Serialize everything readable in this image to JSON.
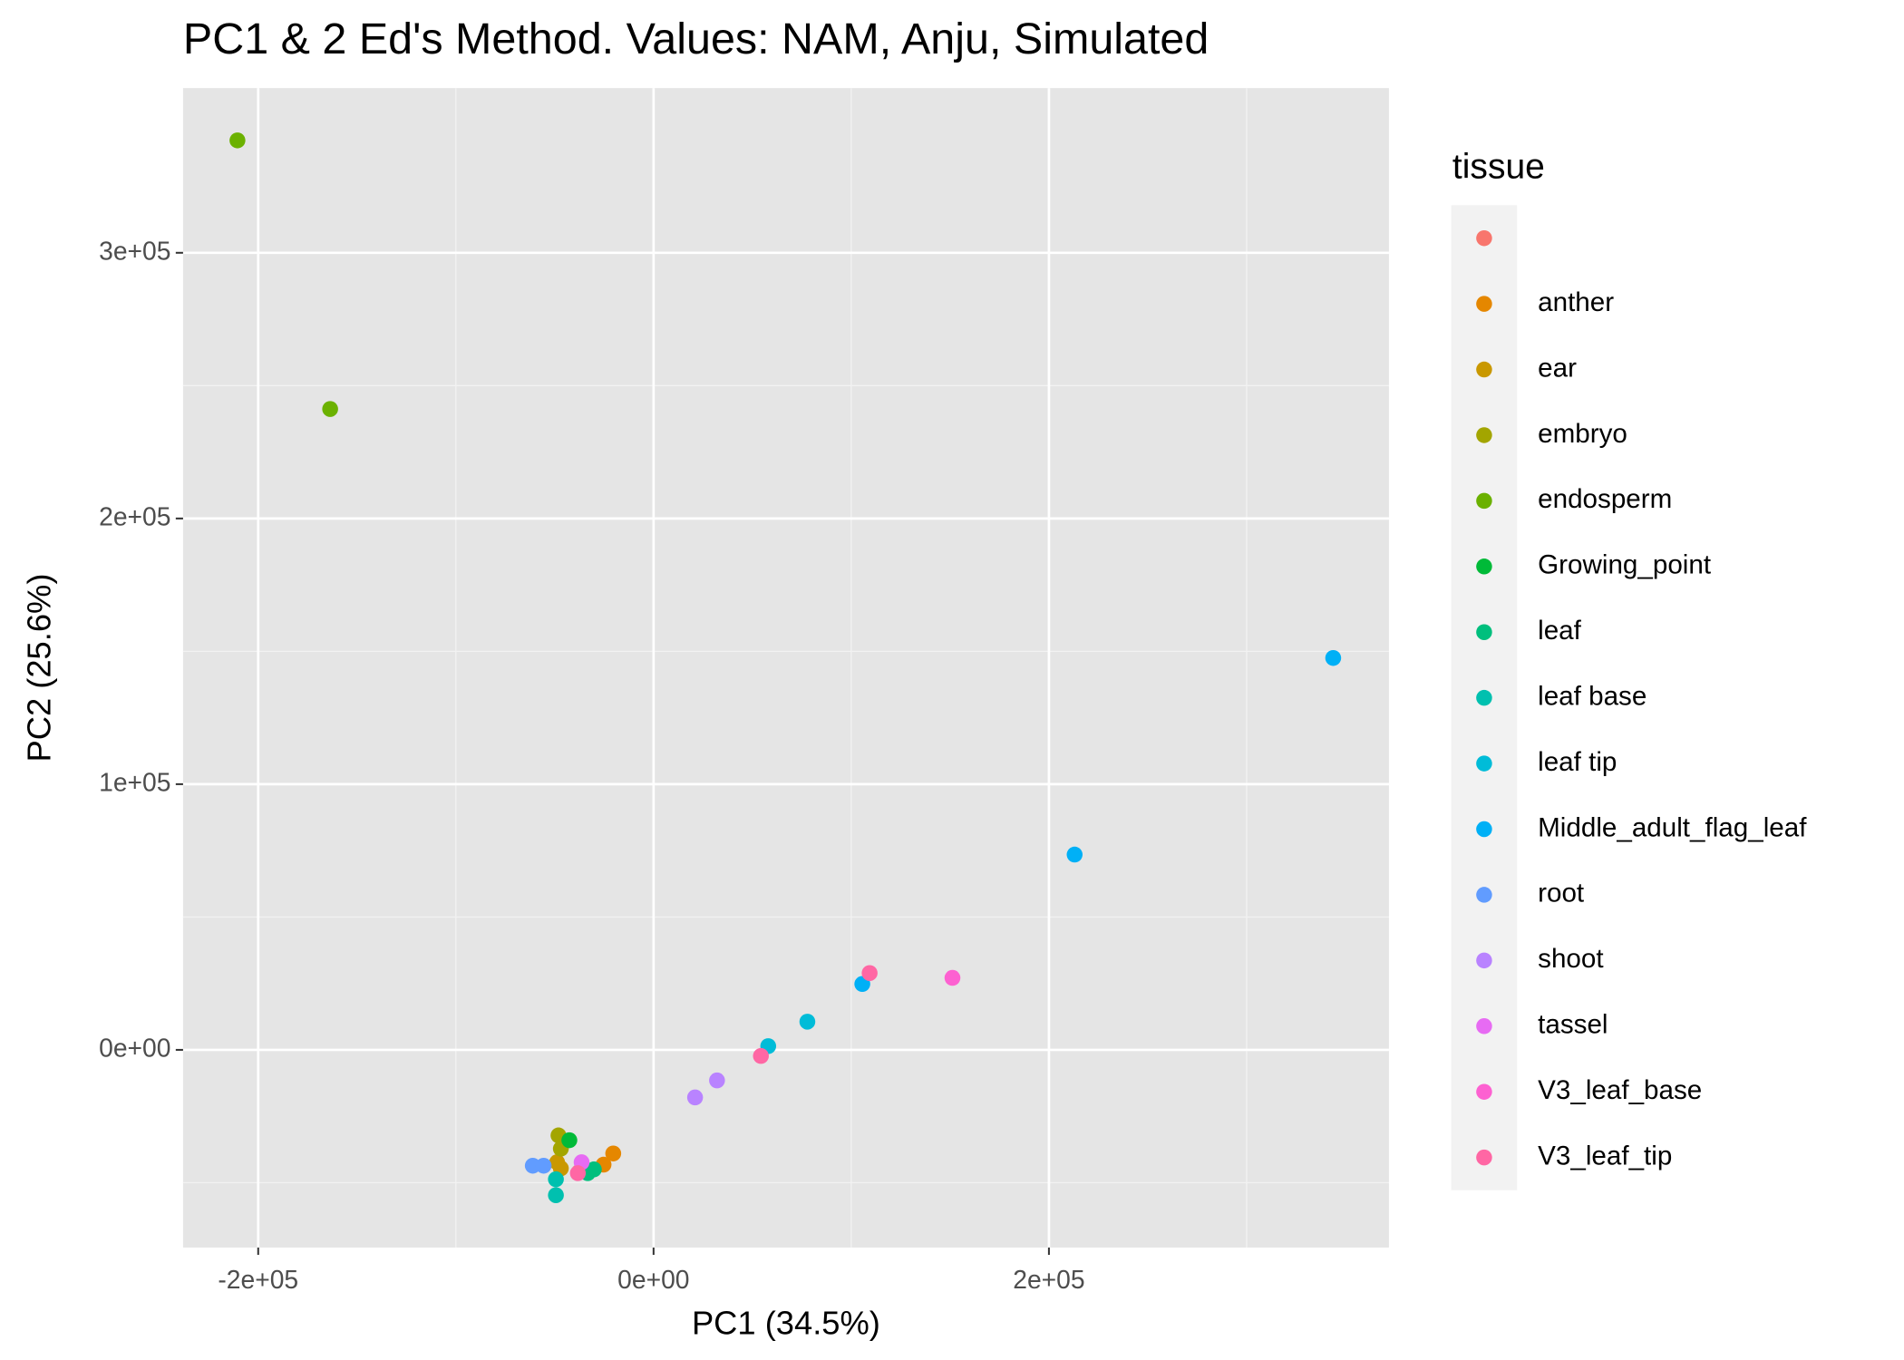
{
  "chart_data": {
    "type": "scatter",
    "title": "PC1 & 2 Ed's Method. Values: NAM, Anju, Simulated",
    "x_label": "PC1 (34.5%)",
    "y_label": "PC2 (25.6%)",
    "legend_title": "tissue",
    "legend_position": "right",
    "xlim": [
      -238000,
      372000
    ],
    "ylim": [
      -74400,
      362000
    ],
    "xticks": [
      {
        "value": -200000,
        "label": "-2e+05"
      },
      {
        "value": 0,
        "label": "0e+00"
      },
      {
        "value": 200000,
        "label": "2e+05"
      }
    ],
    "yticks": [
      {
        "value": 0,
        "label": "0e+00"
      },
      {
        "value": 100000,
        "label": "1e+05"
      },
      {
        "value": 200000,
        "label": "2e+05"
      },
      {
        "value": 300000,
        "label": "3e+05"
      }
    ],
    "xminor_ticks": [
      -100000,
      100000,
      300000
    ],
    "yminor_ticks": [
      -50000,
      50000,
      150000,
      250000
    ],
    "grid": true,
    "series": [
      {
        "name": null,
        "color": "#F8766D",
        "x": [
          -37600
        ],
        "y": [
          -45900
        ]
      },
      {
        "name": "anther",
        "color": "#E58700",
        "x": [
          -20400,
          -25300
        ],
        "y": [
          -39000,
          -43200
        ]
      },
      {
        "name": "ear",
        "color": "#C99800",
        "x": [
          -48800,
          -46900
        ],
        "y": [
          -42300,
          -44600
        ]
      },
      {
        "name": "embryo",
        "color": "#A3A500",
        "x": [
          -48100,
          -46900
        ],
        "y": [
          -32200,
          -37200
        ]
      },
      {
        "name": "endosperm",
        "color": "#6BB100",
        "x": [
          -210500,
          -163600
        ],
        "y": [
          342300,
          241200
        ]
      },
      {
        "name": "Growing_point",
        "color": "#00BA38",
        "x": [
          -42600
        ],
        "y": [
          -34000
        ]
      },
      {
        "name": "leaf",
        "color": "#00BF7D",
        "x": [
          -30200,
          -33300
        ],
        "y": [
          -45000,
          -46400
        ]
      },
      {
        "name": "leaf base",
        "color": "#00C0AF",
        "x": [
          -49400,
          -49400
        ],
        "y": [
          -48700,
          -54700
        ]
      },
      {
        "name": "leaf tip",
        "color": "#00BCD8",
        "x": [
          58000,
          77800
        ],
        "y": [
          1400,
          10600
        ]
      },
      {
        "name": "Middle_adult_flag_leaf",
        "color": "#00B0F6",
        "x": [
          343800,
          213000,
          105600
        ],
        "y": [
          147500,
          73500,
          24800
        ]
      },
      {
        "name": "root",
        "color": "#619CFF",
        "x": [
          -61100,
          -55600
        ],
        "y": [
          -43600,
          -43600
        ]
      },
      {
        "name": "shoot",
        "color": "#B983FF",
        "x": [
          21000,
          32100
        ],
        "y": [
          -17900,
          -11500
        ]
      },
      {
        "name": "tassel",
        "color": "#E76BF3",
        "x": [
          -36400
        ],
        "y": [
          -42300
        ]
      },
      {
        "name": "V3_leaf_base",
        "color": "#FD61D1",
        "x": [
          151200
        ],
        "y": [
          27100
        ]
      },
      {
        "name": "V3_leaf_tip",
        "color": "#FF67A4",
        "x": [
          109300,
          54300,
          -38300
        ],
        "y": [
          28900,
          -2300,
          -46400
        ]
      }
    ]
  }
}
